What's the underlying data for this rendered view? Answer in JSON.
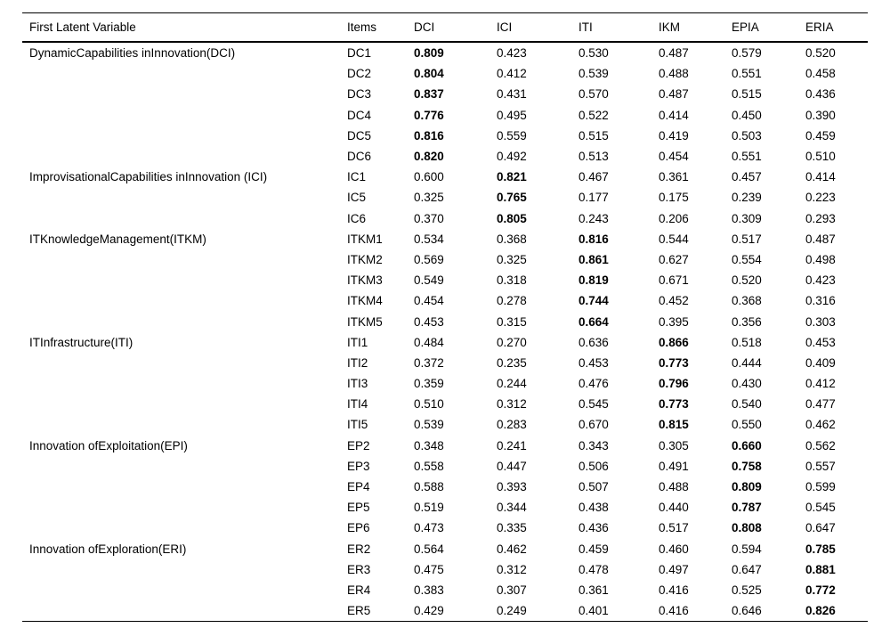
{
  "page": {
    "background_color": "#ffffff",
    "text_color": "#000000",
    "rule_color": "#000000"
  },
  "table": {
    "columns": [
      "First Latent Variable",
      "Items",
      "DCI",
      "ICI",
      "ITI",
      "IKM",
      "EPIA",
      "ERIA"
    ],
    "groups": [
      {
        "label": "DynamicCapabilities inInnovation(DCI)",
        "bold_index": 0,
        "rows": [
          {
            "item": "DC1",
            "values": [
              "0.809",
              "0.423",
              "0.530",
              "0.487",
              "0.579",
              "0.520"
            ]
          },
          {
            "item": "DC2",
            "values": [
              "0.804",
              "0.412",
              "0.539",
              "0.488",
              "0.551",
              "0.458"
            ]
          },
          {
            "item": "DC3",
            "values": [
              "0.837",
              "0.431",
              "0.570",
              "0.487",
              "0.515",
              "0.436"
            ]
          },
          {
            "item": "DC4",
            "values": [
              "0.776",
              "0.495",
              "0.522",
              "0.414",
              "0.450",
              "0.390"
            ]
          },
          {
            "item": "DC5",
            "values": [
              "0.816",
              "0.559",
              "0.515",
              "0.419",
              "0.503",
              "0.459"
            ]
          },
          {
            "item": "DC6",
            "values": [
              "0.820",
              "0.492",
              "0.513",
              "0.454",
              "0.551",
              "0.510"
            ]
          }
        ]
      },
      {
        "label": "ImprovisationalCapabilities inInnovation (ICI)",
        "bold_index": 1,
        "rows": [
          {
            "item": "IC1",
            "values": [
              "0.600",
              "0.821",
              "0.467",
              "0.361",
              "0.457",
              "0.414"
            ]
          },
          {
            "item": "IC5",
            "values": [
              "0.325",
              "0.765",
              "0.177",
              "0.175",
              "0.239",
              "0.223"
            ]
          },
          {
            "item": "IC6",
            "values": [
              "0.370",
              "0.805",
              "0.243",
              "0.206",
              "0.309",
              "0.293"
            ]
          }
        ]
      },
      {
        "label": "ITKnowledgeManagement(ITKM)",
        "bold_index": 2,
        "rows": [
          {
            "item": "ITKM1",
            "values": [
              "0.534",
              "0.368",
              "0.816",
              "0.544",
              "0.517",
              "0.487"
            ]
          },
          {
            "item": "ITKM2",
            "values": [
              "0.569",
              "0.325",
              "0.861",
              "0.627",
              "0.554",
              "0.498"
            ]
          },
          {
            "item": "ITKM3",
            "values": [
              "0.549",
              "0.318",
              "0.819",
              "0.671",
              "0.520",
              "0.423"
            ]
          },
          {
            "item": "ITKM4",
            "values": [
              "0.454",
              "0.278",
              "0.744",
              "0.452",
              "0.368",
              "0.316"
            ]
          },
          {
            "item": "ITKM5",
            "values": [
              "0.453",
              "0.315",
              "0.664",
              "0.395",
              "0.356",
              "0.303"
            ]
          }
        ]
      },
      {
        "label": "ITInfrastructure(ITI)",
        "bold_index": 3,
        "rows": [
          {
            "item": "ITI1",
            "values": [
              "0.484",
              "0.270",
              "0.636",
              "0.866",
              "0.518",
              "0.453"
            ]
          },
          {
            "item": "ITI2",
            "values": [
              "0.372",
              "0.235",
              "0.453",
              "0.773",
              "0.444",
              "0.409"
            ]
          },
          {
            "item": "ITI3",
            "values": [
              "0.359",
              "0.244",
              "0.476",
              "0.796",
              "0.430",
              "0.412"
            ]
          },
          {
            "item": "ITI4",
            "values": [
              "0.510",
              "0.312",
              "0.545",
              "0.773",
              "0.540",
              "0.477"
            ]
          },
          {
            "item": "ITI5",
            "values": [
              "0.539",
              "0.283",
              "0.670",
              "0.815",
              "0.550",
              "0.462"
            ]
          }
        ]
      },
      {
        "label": "Innovation ofExploitation(EPI)",
        "bold_index": 4,
        "rows": [
          {
            "item": "EP2",
            "values": [
              "0.348",
              "0.241",
              "0.343",
              "0.305",
              "0.660",
              "0.562"
            ]
          },
          {
            "item": "EP3",
            "values": [
              "0.558",
              "0.447",
              "0.506",
              "0.491",
              "0.758",
              "0.557"
            ]
          },
          {
            "item": "EP4",
            "values": [
              "0.588",
              "0.393",
              "0.507",
              "0.488",
              "0.809",
              "0.599"
            ]
          },
          {
            "item": "EP5",
            "values": [
              "0.519",
              "0.344",
              "0.438",
              "0.440",
              "0.787",
              "0.545"
            ]
          },
          {
            "item": "EP6",
            "values": [
              "0.473",
              "0.335",
              "0.436",
              "0.517",
              "0.808",
              "0.647"
            ]
          }
        ]
      },
      {
        "label": "Innovation ofExploration(ERI)",
        "bold_index": 5,
        "rows": [
          {
            "item": "ER2",
            "values": [
              "0.564",
              "0.462",
              "0.459",
              "0.460",
              "0.594",
              "0.785"
            ]
          },
          {
            "item": "ER3",
            "values": [
              "0.475",
              "0.312",
              "0.478",
              "0.497",
              "0.647",
              "0.881"
            ]
          },
          {
            "item": "ER4",
            "values": [
              "0.383",
              "0.307",
              "0.361",
              "0.416",
              "0.525",
              "0.772"
            ]
          },
          {
            "item": "ER5",
            "values": [
              "0.429",
              "0.249",
              "0.401",
              "0.416",
              "0.646",
              "0.826"
            ]
          }
        ]
      }
    ]
  }
}
